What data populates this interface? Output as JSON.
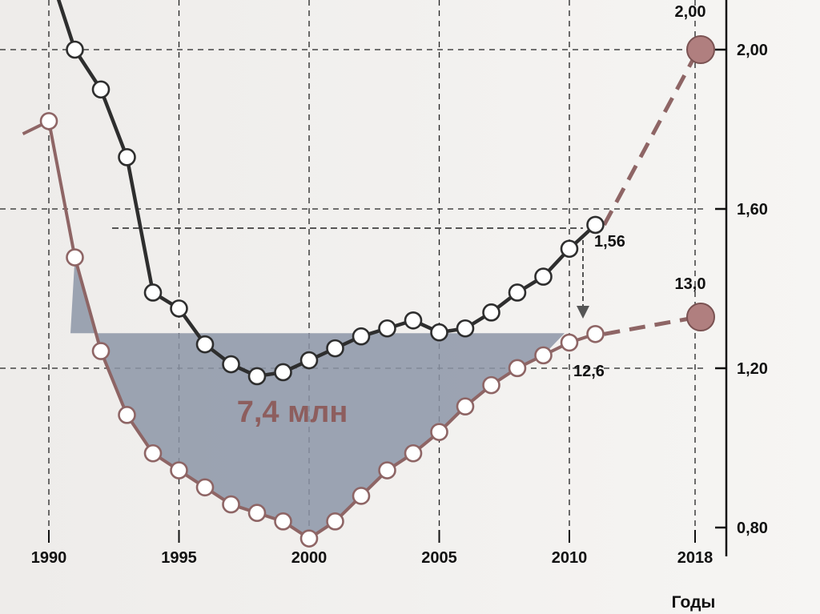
{
  "chart_data": {
    "type": "line",
    "title": "",
    "xlabel": "Годы",
    "ylabel": "",
    "x_ticks": [
      "1990",
      "1995",
      "2000",
      "2005",
      "2010",
      "2018"
    ],
    "y_ticks": [
      "2,00",
      "1,60",
      "1,20",
      "0,80"
    ],
    "series": [
      {
        "name": "",
        "color": "#2e2e2e",
        "x": [
          1990,
          1991,
          1992,
          1993,
          1994,
          1995,
          1996,
          1997,
          1998,
          1999,
          2000,
          2001,
          2002,
          2003,
          2004,
          2005,
          2006,
          2007,
          2008,
          2009,
          2010,
          2011
        ],
        "y": [
          2.2,
          2.0,
          1.9,
          1.73,
          1.39,
          1.35,
          1.26,
          1.21,
          1.18,
          1.19,
          1.22,
          1.25,
          1.28,
          1.3,
          1.32,
          1.29,
          1.3,
          1.34,
          1.39,
          1.43,
          1.5,
          1.56
        ]
      },
      {
        "name": "",
        "color": "#8e6565",
        "x": [
          1989,
          1990,
          1991,
          1992,
          1993,
          1994,
          1995,
          1996,
          1997,
          1998,
          1999,
          2000,
          2001,
          2002,
          2003,
          2004,
          2005,
          2006,
          2007,
          2008,
          2009,
          2010,
          2011
        ],
        "y": [
          17.3,
          17.6,
          14.4,
          12.2,
          10.7,
          9.8,
          9.4,
          9.0,
          8.6,
          8.4,
          8.2,
          7.8,
          8.2,
          8.8,
          9.4,
          9.8,
          10.3,
          10.9,
          11.4,
          11.8,
          12.1,
          12.4,
          12.6
        ]
      }
    ],
    "projections": [
      {
        "from_year": 2011,
        "from_value": 1.56,
        "to_year": 2018,
        "to_value": 2.0,
        "color": "#8e6565"
      },
      {
        "from_year": 2011,
        "from_value": 12.6,
        "to_year": 2018,
        "to_value": 13.0,
        "color": "#8e6565"
      }
    ],
    "annotations": {
      "upper_end": "1,56",
      "lower_end": "12,6",
      "upper_target": "2,00",
      "lower_target": "13,0",
      "area": "7,4 млн"
    },
    "grid": true
  }
}
